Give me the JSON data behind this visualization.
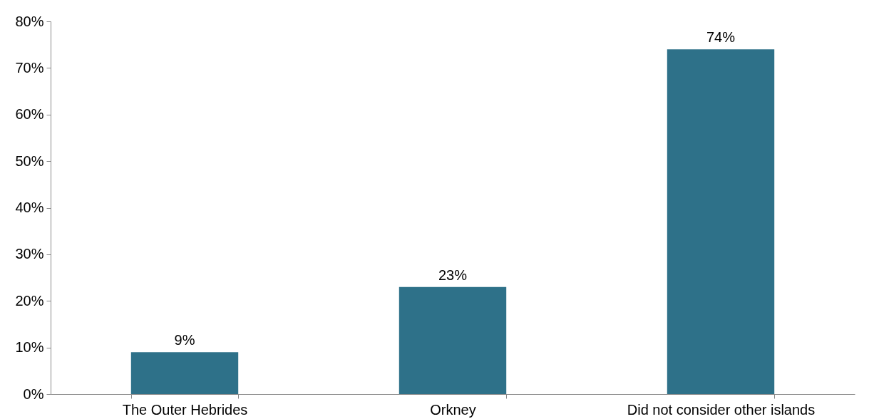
{
  "chart_data": {
    "type": "bar",
    "categories": [
      "The Outer Hebrides",
      "Orkney",
      "Did not consider other islands"
    ],
    "values": [
      9,
      23,
      74
    ],
    "color": "#2e7189",
    "value_labels": [
      "9%",
      "23%",
      "74%"
    ],
    "ylim": [
      0,
      80
    ],
    "yticks": [
      {
        "value": 0,
        "label": "0%"
      },
      {
        "value": 10,
        "label": "10%"
      },
      {
        "value": 20,
        "label": "20%"
      },
      {
        "value": 30,
        "label": "30%"
      },
      {
        "value": 40,
        "label": "40%"
      },
      {
        "value": 50,
        "label": "50%"
      },
      {
        "value": 60,
        "label": "60%"
      },
      {
        "value": 70,
        "label": "70%"
      },
      {
        "value": 80,
        "label": "80%"
      }
    ],
    "grid": false
  }
}
